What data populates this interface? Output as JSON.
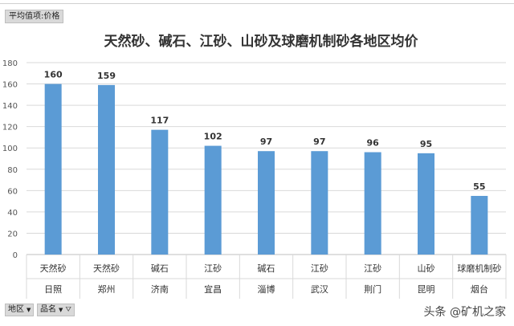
{
  "top_field_label": "平均值项:价格",
  "bottom_fields": [
    {
      "label": "地区",
      "icon": "dropdown-icon"
    },
    {
      "label": "品名",
      "icon": "filter-icon"
    }
  ],
  "watermark": "头条 @矿机之家",
  "chart_data": {
    "type": "bar",
    "title": "天然砂、碱石、江砂、山砂及球磨机制砂各地区均价",
    "categories": [
      {
        "name": "天然砂",
        "region": "日照"
      },
      {
        "name": "天然砂",
        "region": "郑州"
      },
      {
        "name": "碱石",
        "region": "济南"
      },
      {
        "name": "江砂",
        "region": "宜昌"
      },
      {
        "name": "碱石",
        "region": "淄博"
      },
      {
        "name": "江砂",
        "region": "武汉"
      },
      {
        "name": "江砂",
        "region": "荆门"
      },
      {
        "name": "山砂",
        "region": "昆明"
      },
      {
        "name": "球磨机制砂",
        "region": "烟台"
      }
    ],
    "values": [
      160,
      159,
      117,
      102,
      97,
      97,
      96,
      95,
      55
    ],
    "ylim": [
      0,
      180
    ],
    "yticks": [
      0,
      20,
      40,
      60,
      80,
      100,
      120,
      140,
      160,
      180
    ],
    "grid": true,
    "bar_color": "#5b9bd5"
  }
}
